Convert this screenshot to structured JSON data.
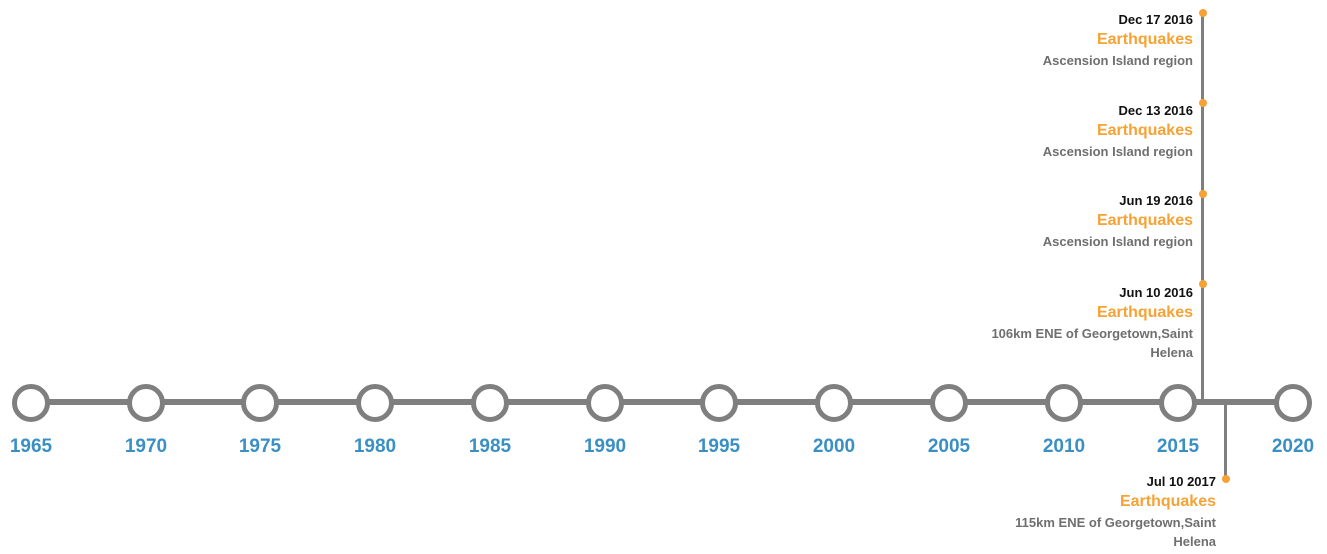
{
  "timeline": {
    "years": [
      "1965",
      "1970",
      "1975",
      "1980",
      "1985",
      "1990",
      "1995",
      "2000",
      "2005",
      "2010",
      "2015",
      "2020"
    ],
    "events": [
      {
        "date": "Dec 17 2016",
        "title": "Earthquakes",
        "description": "Ascension Island region"
      },
      {
        "date": "Dec 13 2016",
        "title": "Earthquakes",
        "description": "Ascension Island region"
      },
      {
        "date": "Jun 19 2016",
        "title": "Earthquakes",
        "description": "Ascension Island region"
      },
      {
        "date": "Jun 10 2016",
        "title": "Earthquakes",
        "description": "106km ENE of Georgetown,Saint Helena"
      },
      {
        "date": "Jul 10 2017",
        "title": "Earthquakes",
        "description": "115km ENE of Georgetown,Saint Helena"
      }
    ]
  },
  "colors": {
    "axis": "#7f7f7f",
    "year_label": "#3a8fc4",
    "event_title": "#f7a234",
    "event_dot": "#f7a234",
    "event_date": "#111111",
    "event_description": "#6f6f6f"
  }
}
